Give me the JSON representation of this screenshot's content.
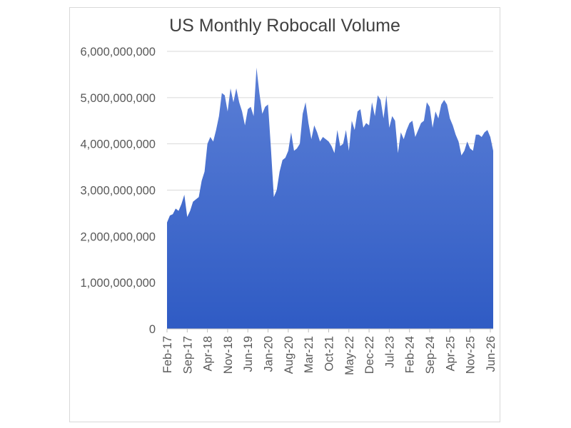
{
  "chart_data": {
    "type": "area",
    "title": "US Monthly Robocall Volume",
    "xlabel": "",
    "ylabel": "",
    "ylim": [
      0,
      6000000000
    ],
    "y_ticks": [
      "0",
      "1,000,000,000",
      "2,000,000,000",
      "3,000,000,000",
      "4,000,000,000",
      "5,000,000,000",
      "6,000,000,000"
    ],
    "y_tick_values": [
      0,
      1000000000,
      2000000000,
      3000000000,
      4000000000,
      5000000000,
      6000000000
    ],
    "x_tick_labels": [
      "Feb-17",
      "Sep-17",
      "Apr-18",
      "Nov-18",
      "Jun-19",
      "Jan-20",
      "Aug-20",
      "Mar-21",
      "Oct-21",
      "May-22",
      "Dec-22",
      "Jul-23",
      "Feb-24",
      "Sep-24",
      "Apr-25",
      "Nov-25",
      "Jun-26"
    ],
    "grid": true,
    "legend": "none",
    "fill_color_top": "#5b7fd6",
    "fill_color_bottom": "#2f5bc4",
    "gridline_color": "#d9d9d9",
    "series": [
      {
        "start": "Feb-17",
        "values": [
          2300000000,
          2450000000,
          2480000000,
          2600000000,
          2550000000,
          2700000000,
          2900000000,
          2420000000,
          2550000000,
          2750000000,
          2800000000,
          2850000000,
          3200000000,
          3400000000,
          4000000000,
          4150000000,
          4050000000,
          4300000000,
          4600000000,
          5100000000,
          5050000000,
          4700000000,
          5200000000,
          4900000000,
          5200000000,
          4900000000,
          4700000000,
          4400000000,
          4750000000,
          4800000000,
          4600000000,
          5650000000,
          5100000000,
          4650000000,
          4800000000,
          4850000000,
          3900000000,
          2850000000,
          3000000000,
          3400000000,
          3650000000,
          3700000000,
          3850000000,
          4250000000,
          3850000000,
          3900000000,
          4000000000,
          4650000000,
          4900000000,
          4450000000,
          4100000000,
          4400000000,
          4250000000,
          4050000000,
          4150000000,
          4100000000,
          4050000000,
          3950000000,
          3800000000,
          4300000000,
          3950000000,
          4000000000,
          4300000000,
          3850000000,
          4500000000,
          4300000000,
          4700000000,
          4750000000,
          4350000000,
          4450000000,
          4400000000,
          4900000000,
          4600000000,
          5050000000,
          4950000000,
          4550000000,
          5050000000,
          4350000000,
          4600000000,
          4500000000,
          3800000000,
          4250000000,
          4100000000,
          4300000000,
          4450000000,
          4500000000,
          4150000000,
          4300000000,
          4450000000,
          4500000000,
          4900000000,
          4800000000,
          4350000000,
          4700000000,
          4550000000,
          4850000000,
          4950000000,
          4850000000,
          4550000000,
          4400000000,
          4200000000,
          4050000000,
          3750000000,
          3850000000,
          4050000000,
          3900000000,
          3850000000,
          4200000000,
          4200000000,
          4150000000,
          4250000000,
          4300000000,
          4150000000,
          3850000000
        ]
      }
    ]
  }
}
